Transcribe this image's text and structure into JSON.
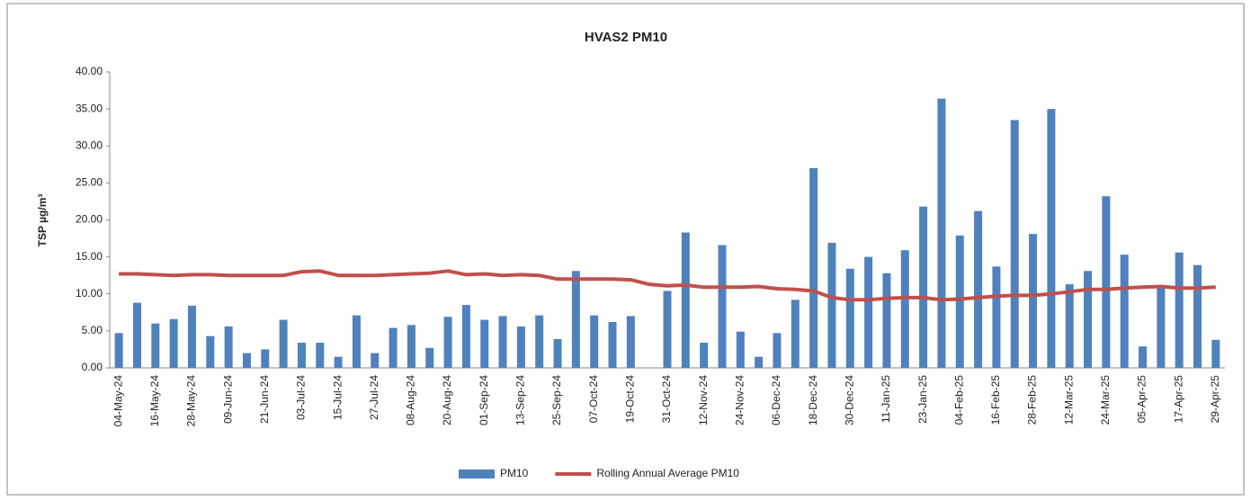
{
  "chart_data": {
    "type": "bar",
    "title": "HVAS2 PM10",
    "y_label": "TSP µg/m³",
    "categories": [
      "04-May-24",
      null,
      "16-May-24",
      null,
      "28-May-24",
      null,
      "09-Jun-24",
      null,
      "21-Jun-24",
      null,
      "03-Jul-24",
      null,
      "15-Jul-24",
      null,
      "27-Jul-24",
      null,
      "08-Aug-24",
      null,
      "20-Aug-24",
      null,
      "01-Sep-24",
      null,
      "13-Sep-24",
      null,
      "25-Sep-24",
      null,
      "07-Oct-24",
      null,
      "19-Oct-24",
      null,
      "31-Oct-24",
      null,
      "12-Nov-24",
      null,
      "24-Nov-24",
      null,
      "06-Dec-24",
      null,
      "18-Dec-24",
      null,
      "30-Dec-24",
      null,
      "11-Jan-25",
      null,
      "23-Jan-25",
      null,
      "04-Feb-25",
      null,
      "16-Feb-25",
      null,
      "28-Feb-25",
      null,
      "12-Mar-25",
      null,
      "24-Mar-25",
      null,
      "05-Apr-25",
      null,
      "17-Apr-25",
      null,
      "29-Apr-25"
    ],
    "series": [
      {
        "name": "PM10",
        "type": "bar",
        "color": "#4f81bd",
        "values": [
          4.7,
          8.8,
          6.0,
          6.6,
          8.4,
          4.3,
          5.6,
          2.0,
          2.5,
          6.5,
          3.4,
          3.4,
          1.5,
          7.1,
          2.0,
          5.4,
          5.8,
          2.7,
          6.9,
          8.5,
          6.5,
          7.0,
          5.6,
          7.1,
          3.9,
          13.1,
          7.1,
          6.2,
          7.0,
          null,
          10.4,
          18.3,
          3.4,
          16.6,
          4.9,
          1.5,
          4.7,
          9.2,
          27.0,
          16.9,
          13.4,
          15.0,
          12.8,
          15.9,
          21.8,
          36.4,
          17.9,
          21.2,
          13.7,
          33.5,
          18.1,
          35.0,
          11.3,
          13.1,
          23.2,
          15.3,
          2.9,
          10.9,
          15.6,
          13.9,
          3.8
        ]
      },
      {
        "name": "Rolling Annual Average PM10",
        "type": "line",
        "color": "#c0504d",
        "values": [
          12.7,
          12.7,
          12.6,
          12.5,
          12.6,
          12.6,
          12.5,
          12.5,
          12.5,
          12.5,
          13.0,
          13.1,
          12.5,
          12.5,
          12.5,
          12.6,
          12.7,
          12.8,
          13.1,
          12.6,
          12.7,
          12.5,
          12.6,
          12.5,
          12.0,
          12.0,
          12.0,
          12.0,
          11.9,
          11.3,
          11.1,
          11.2,
          10.9,
          10.9,
          10.9,
          11.0,
          10.7,
          10.6,
          10.4,
          9.5,
          9.2,
          9.2,
          9.4,
          9.5,
          9.5,
          9.2,
          9.3,
          9.5,
          9.7,
          9.8,
          9.8,
          10.0,
          10.3,
          10.6,
          10.6,
          10.8,
          10.9,
          11.0,
          10.8,
          10.8,
          10.9
        ]
      }
    ],
    "ylim": [
      0,
      40
    ],
    "yticks": [
      {
        "value": 0,
        "label": "0.00"
      },
      {
        "value": 5,
        "label": "5.00"
      },
      {
        "value": 10,
        "label": "10.00"
      },
      {
        "value": 15,
        "label": "15.00"
      },
      {
        "value": 20,
        "label": "20.00"
      },
      {
        "value": 25,
        "label": "25.00"
      },
      {
        "value": 30,
        "label": "30.00"
      },
      {
        "value": 35,
        "label": "35.00"
      },
      {
        "value": 40,
        "label": "40.00"
      }
    ],
    "grid": false,
    "legend": "bottom"
  }
}
